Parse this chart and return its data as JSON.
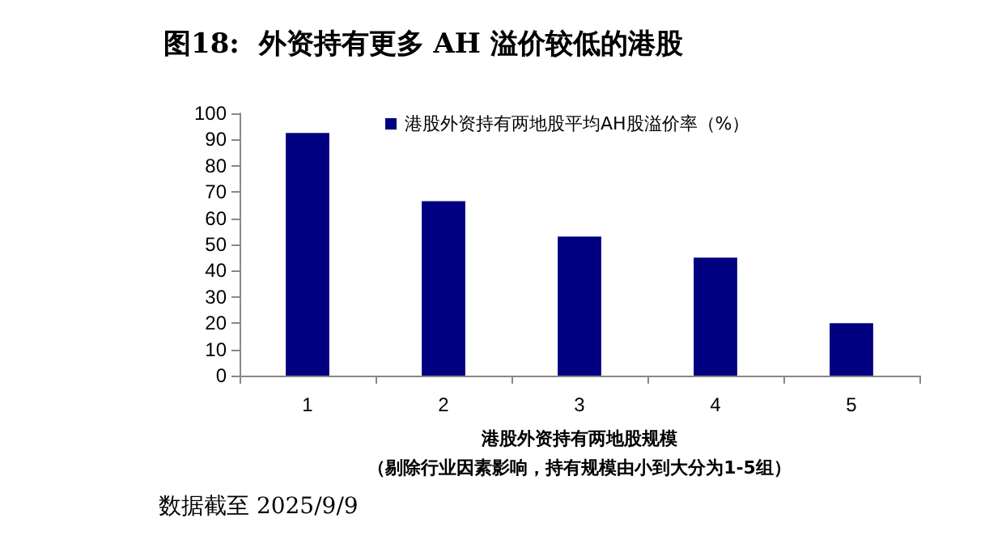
{
  "chart_data": {
    "type": "bar",
    "title": "图18:  外资持有更多 AH 溢价较低的港股",
    "categories": [
      "1",
      "2",
      "3",
      "4",
      "5"
    ],
    "series": [
      {
        "name": "港股外资持有两地股平均AH股溢价率（%）",
        "color": "#000080",
        "values": [
          92.5,
          66.5,
          53,
          45,
          20
        ]
      }
    ],
    "xlabel": "港股外资持有两地股规模（剔除行业因素影响，持有规模由小到大分为1-5组）",
    "ylim": [
      0,
      100
    ],
    "yticks": [
      0,
      10,
      20,
      30,
      40,
      50,
      60,
      70,
      80,
      90,
      100
    ],
    "grid": false,
    "legend": "top",
    "annotations": [
      "数据截至 2025/9/9"
    ]
  }
}
